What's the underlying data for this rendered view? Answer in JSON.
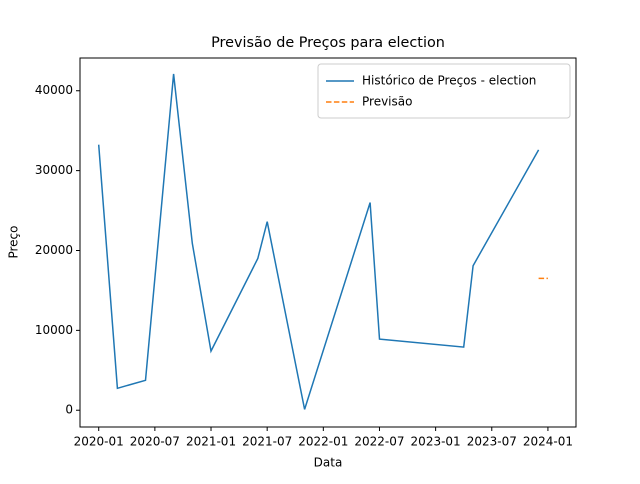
{
  "chart_data": {
    "type": "line",
    "title": "Previsão de Preços para election",
    "xlabel": "Data",
    "ylabel": "Preço",
    "series": [
      {
        "name": "Histórico de Preços - election",
        "color": "#1f77b4",
        "linestyle": "solid",
        "x": [
          "2020-01",
          "2020-03",
          "2020-06",
          "2020-09",
          "2020-11",
          "2021-01",
          "2021-06",
          "2021-07",
          "2021-11",
          "2022-06",
          "2022-07",
          "2023-04",
          "2023-05",
          "2023-12"
        ],
        "values": [
          33250,
          2750,
          3750,
          42100,
          20900,
          7400,
          19000,
          23600,
          100,
          26000,
          8900,
          7900,
          18100,
          32600
        ]
      },
      {
        "name": "Previsão",
        "color": "#ff7f0e",
        "linestyle": "dashed",
        "x": [
          "2023-12",
          "2024-01"
        ],
        "values": [
          16500,
          16500
        ]
      }
    ],
    "xlim": [
      "2019-11",
      "2024-04"
    ],
    "xticks": [
      "2020-01",
      "2020-07",
      "2021-01",
      "2021-07",
      "2022-01",
      "2022-07",
      "2023-01",
      "2023-07",
      "2024-01"
    ],
    "ylim": [
      -2100,
      44100
    ],
    "yticks": [
      0,
      10000,
      20000,
      30000,
      40000
    ],
    "legend": "upper right",
    "grid": false
  }
}
